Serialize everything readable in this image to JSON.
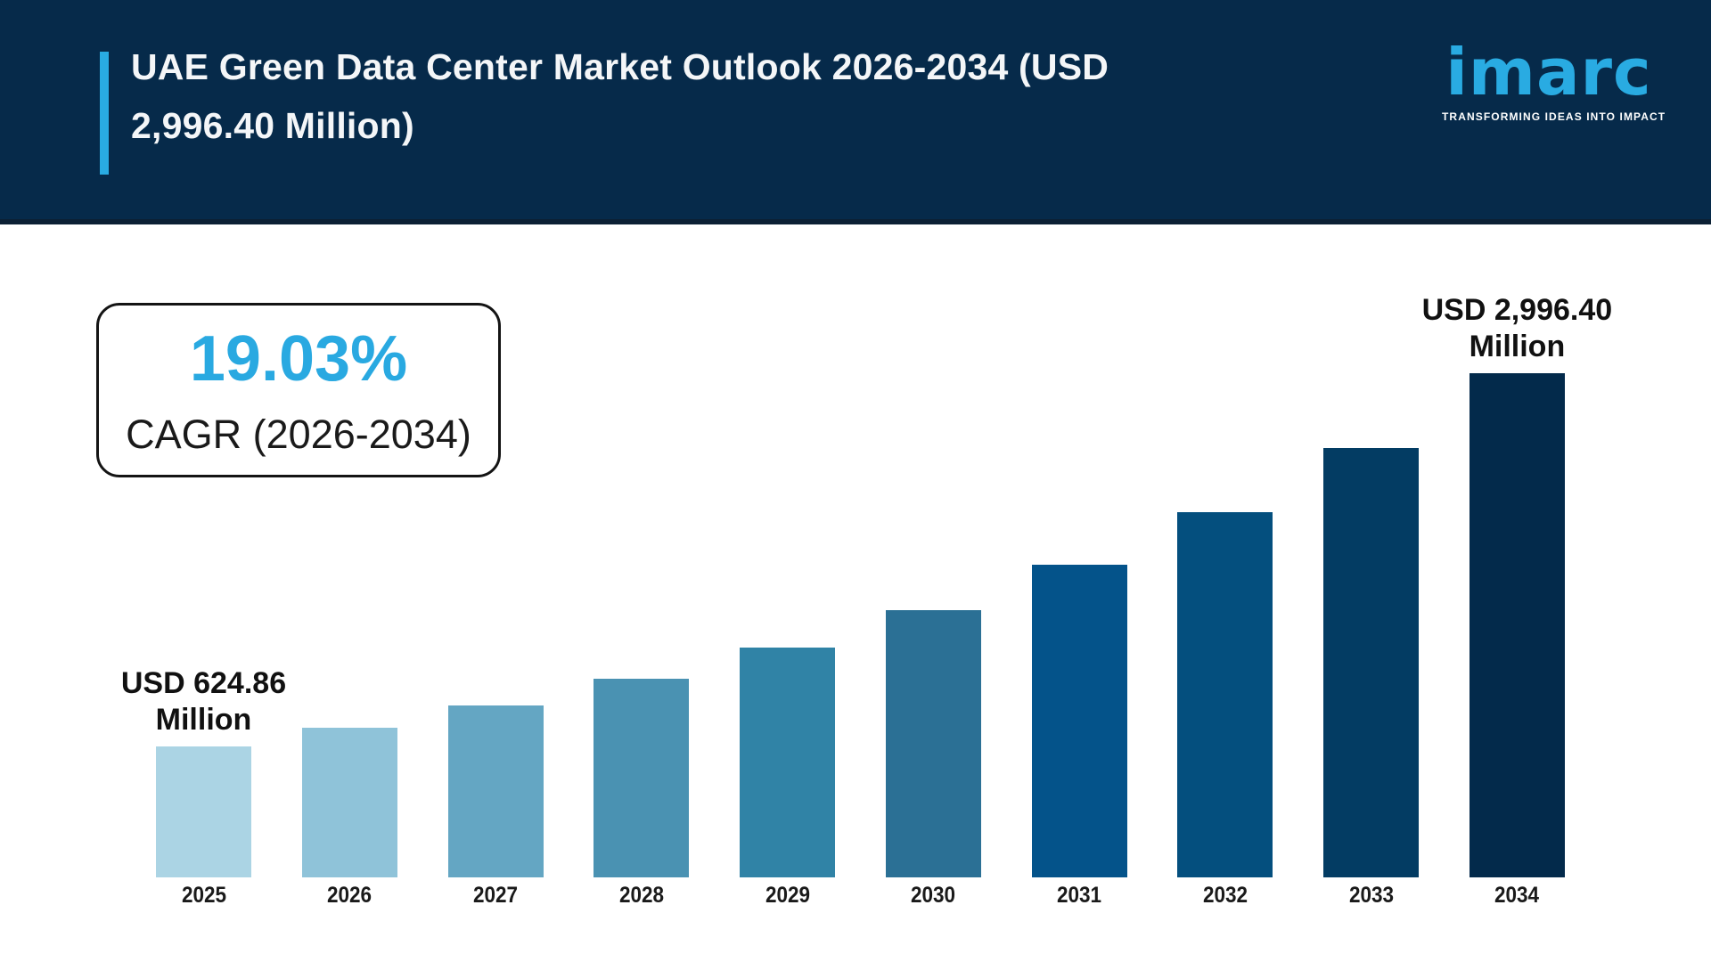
{
  "header": {
    "title_line1": "UAE Green Data Center Market Outlook 2026-2034 (USD",
    "title_line2": "2,996.40 Million)",
    "background_color": "#062a4a",
    "accent_color": "#29abe2",
    "logo": {
      "wordmark": "imarc",
      "tagline": "TRANSFORMING IDEAS INTO IMPACT",
      "wordmark_color": "#29abe2"
    }
  },
  "cagr_box": {
    "value": "19.03%",
    "label": "CAGR (2026-2034)",
    "value_color": "#29a9e1"
  },
  "chart_data": {
    "type": "bar",
    "title": "UAE Green Data Center Market Outlook 2026-2034 (USD 2,996.40 Million)",
    "unit": "USD Million",
    "xlabel": "",
    "ylabel": "",
    "ylim": [
      0,
      3200
    ],
    "grid": false,
    "legend": false,
    "categories": [
      "2025",
      "2026",
      "2027",
      "2028",
      "2029",
      "2030",
      "2031",
      "2032",
      "2033",
      "2034"
    ],
    "values": [
      624.86,
      743.77,
      885.31,
      1053.79,
      1254.33,
      1493.04,
      1777.17,
      2115.36,
      2517.93,
      2996.4
    ],
    "bar_colors": [
      "#abd4e4",
      "#8fc3d9",
      "#64a6c3",
      "#4a92b2",
      "#3083a6",
      "#2b7095",
      "#04538a",
      "#044f7e",
      "#033c63",
      "#032a4b"
    ],
    "annotations": [
      {
        "category": "2025",
        "lines": [
          "USD 624.86",
          "Million"
        ]
      },
      {
        "category": "2034",
        "lines": [
          "USD 2,996.40",
          "Million"
        ]
      }
    ],
    "cagr": "19.03%",
    "cagr_period": "2026-2034"
  }
}
